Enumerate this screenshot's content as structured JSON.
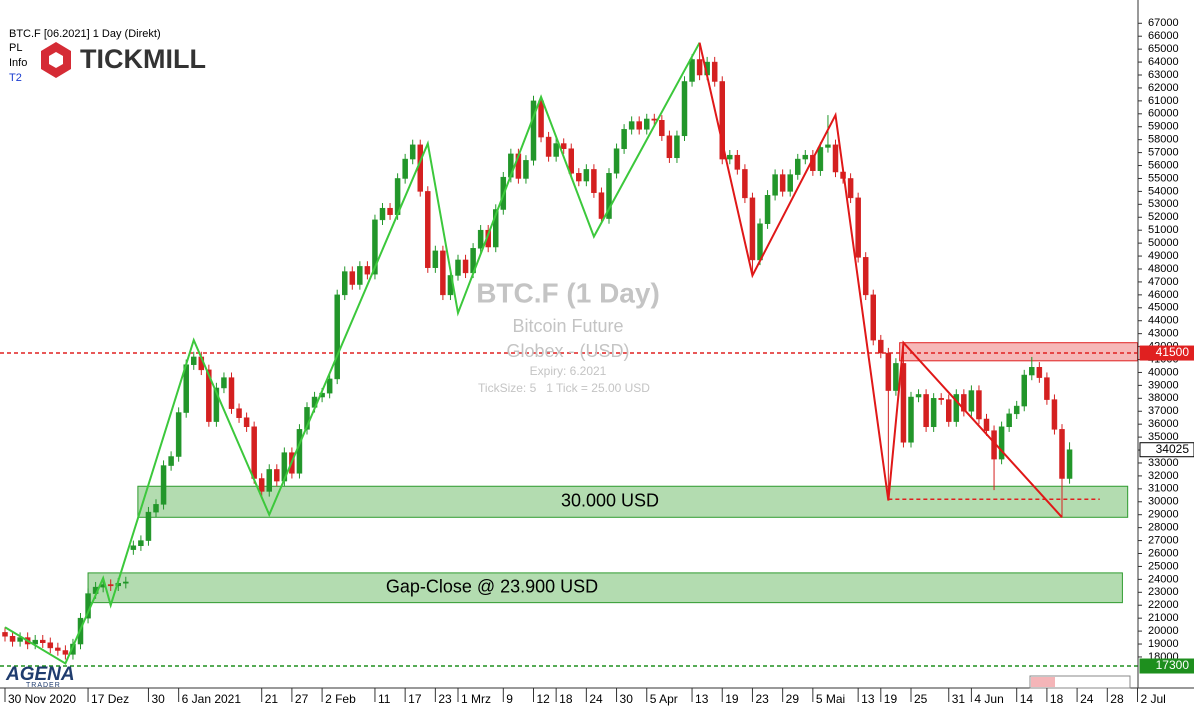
{
  "chart_data": {
    "type": "candlestick",
    "header": "BTC.F [06.2021] 1 Day (Direkt)",
    "menu": [
      "PL",
      "Info"
    ],
    "link": "T2",
    "brand": "TICKMILL",
    "logo": {
      "name": "AGENA",
      "tagline": "TRADER"
    },
    "watermark": {
      "title": "BTC.F (1 Day)",
      "subtitle": "Bitcoin Future",
      "exchange": "Globex - (USD)",
      "expiry": "Expiry: 6.2021",
      "ticksize": "TickSize: 5   1 Tick = 25.00 USD"
    },
    "categories": [
      "30 Nov 2020",
      null,
      null,
      null,
      null,
      null,
      null,
      null,
      null,
      null,
      null,
      "17 Dez",
      null,
      null,
      null,
      null,
      null,
      null,
      null,
      "30",
      null,
      null,
      null,
      "6 Jan 2021",
      null,
      null,
      null,
      null,
      null,
      null,
      null,
      null,
      null,
      null,
      "21",
      null,
      null,
      null,
      "27",
      null,
      null,
      null,
      "2 Feb",
      null,
      null,
      null,
      null,
      null,
      null,
      "11",
      null,
      null,
      null,
      "17",
      null,
      null,
      null,
      "23",
      null,
      null,
      "1 Mrz",
      null,
      null,
      null,
      null,
      null,
      "9",
      null,
      null,
      null,
      "12",
      null,
      null,
      "18",
      null,
      null,
      null,
      "24",
      null,
      null,
      null,
      "30",
      null,
      null,
      null,
      "5 Apr",
      null,
      null,
      null,
      null,
      null,
      "13",
      null,
      null,
      null,
      "19",
      null,
      null,
      null,
      "23",
      null,
      null,
      null,
      "29",
      null,
      null,
      null,
      "5 Mai",
      null,
      null,
      null,
      null,
      null,
      "13",
      null,
      null,
      "19",
      null,
      null,
      null,
      "25",
      null,
      null,
      null,
      null,
      "31",
      null,
      null,
      "4 Jun",
      null,
      null,
      null,
      null,
      null,
      "14",
      null,
      null,
      null,
      "18",
      null,
      null,
      null,
      "24",
      null,
      null,
      null,
      "28",
      null,
      null,
      null,
      "2 Jul"
    ],
    "series": {
      "open": [
        19900,
        19600,
        19200,
        19500,
        19000,
        19300,
        19100,
        18700,
        18500,
        18200,
        19000,
        21000,
        22900,
        23400,
        23600,
        23500,
        23700,
        26300,
        26600,
        27000,
        29200,
        29800,
        32800,
        33500,
        36900,
        40600,
        41200,
        40200,
        36200,
        38800,
        39600,
        37200,
        36500,
        35800,
        31800,
        30800,
        32500,
        31600,
        33800,
        32200,
        35600,
        37300,
        38100,
        38400,
        39500,
        46000,
        47800,
        46800,
        48200,
        47600,
        51800,
        52700,
        52200,
        55000,
        56500,
        57600,
        54000,
        48100,
        49400,
        46000,
        47500,
        48700,
        47700,
        49600,
        51000,
        49700,
        52600,
        55100,
        56900,
        55000,
        56400,
        61000,
        58200,
        56700,
        57700,
        57300,
        55400,
        54800,
        55700,
        53900,
        51900,
        55400,
        57300,
        58800,
        59400,
        58800,
        59600,
        59500,
        58300,
        56600,
        58300,
        62500,
        64200,
        63000,
        64000,
        62500,
        56500,
        56800,
        55700,
        53500,
        48700,
        51500,
        53700,
        55300,
        54000,
        55300,
        56500,
        56800,
        55600,
        57400,
        57600,
        55500,
        55000,
        53500,
        48900,
        46000,
        42500,
        41500,
        38600,
        40700,
        34600,
        38100,
        38300,
        35800,
        38000,
        37900,
        36200,
        38300,
        37000,
        38600,
        36400,
        35500,
        33300,
        35800,
        36800,
        37400,
        39800,
        40400,
        39600,
        37900,
        35600,
        31800,
        null,
        null,
        null,
        null,
        null,
        null,
        null,
        null,
        null
      ],
      "high": [
        20300,
        20000,
        19900,
        19900,
        19700,
        19700,
        19500,
        19100,
        18900,
        19400,
        21400,
        23300,
        23800,
        24000,
        24000,
        24100,
        24200,
        27000,
        27400,
        29600,
        30200,
        33200,
        33900,
        37300,
        41000,
        41600,
        41600,
        40600,
        39200,
        40000,
        40000,
        37600,
        36900,
        36200,
        32200,
        32900,
        32900,
        34200,
        34200,
        36000,
        37700,
        38500,
        38800,
        39900,
        46400,
        48200,
        48200,
        48600,
        48600,
        52200,
        53100,
        53100,
        55400,
        56900,
        58000,
        58000,
        54400,
        49800,
        49800,
        47900,
        49100,
        49100,
        50000,
        51400,
        51400,
        53000,
        55500,
        57300,
        57300,
        56800,
        61400,
        61400,
        58600,
        58100,
        58100,
        57700,
        55800,
        56100,
        56100,
        54300,
        55800,
        57700,
        59200,
        59800,
        59800,
        60000,
        60000,
        59900,
        58700,
        58700,
        62900,
        64600,
        65500,
        64400,
        64400,
        62900,
        57200,
        57200,
        56100,
        53900,
        51900,
        54100,
        55700,
        55700,
        55700,
        56900,
        57200,
        57200,
        57800,
        59900,
        58000,
        55900,
        55400,
        53900,
        49300,
        46400,
        42900,
        41900,
        41100,
        42300,
        38500,
        38700,
        38700,
        38400,
        38400,
        38300,
        38700,
        38700,
        39000,
        39000,
        36800,
        35900,
        36200,
        37200,
        37800,
        40200,
        41200,
        40800,
        40000,
        38300,
        36000,
        34600,
        null,
        null,
        null,
        null,
        null,
        null,
        null,
        null,
        null
      ],
      "low": [
        19200,
        18800,
        18800,
        18600,
        18600,
        18700,
        18300,
        18100,
        17800,
        17800,
        18600,
        20600,
        22500,
        23000,
        23100,
        23100,
        23300,
        25900,
        26200,
        26600,
        28800,
        29400,
        32400,
        33100,
        36500,
        40200,
        39800,
        35800,
        35800,
        38400,
        36800,
        36100,
        35400,
        31400,
        30400,
        30400,
        31200,
        31200,
        31800,
        31800,
        35200,
        36900,
        37700,
        38000,
        39100,
        45600,
        46400,
        46400,
        47200,
        47200,
        51400,
        51800,
        51800,
        54600,
        56100,
        53600,
        47700,
        47700,
        45600,
        45600,
        47100,
        47300,
        47300,
        49200,
        49300,
        49300,
        52200,
        54700,
        54600,
        54600,
        56000,
        57800,
        56300,
        56300,
        56900,
        55000,
        54400,
        54400,
        53500,
        51500,
        51500,
        55000,
        56900,
        58400,
        58400,
        58400,
        59100,
        57900,
        56200,
        56200,
        57900,
        62100,
        62600,
        62600,
        62100,
        56100,
        56100,
        55300,
        53100,
        47500,
        48300,
        51100,
        53300,
        53600,
        53600,
        54900,
        56100,
        55200,
        55200,
        57000,
        55100,
        54600,
        53100,
        48500,
        45600,
        42100,
        41100,
        30100,
        38200,
        34200,
        34200,
        37700,
        35400,
        35400,
        37500,
        35800,
        35800,
        36600,
        36600,
        36000,
        35100,
        30900,
        32900,
        35400,
        36400,
        37000,
        39400,
        39200,
        37500,
        35200,
        28800,
        31400,
        null,
        null,
        null,
        null,
        null,
        null,
        null,
        null,
        null
      ],
      "close": [
        19600,
        19200,
        19500,
        19000,
        19300,
        19100,
        18700,
        18500,
        18200,
        19000,
        21000,
        22900,
        23400,
        23600,
        23500,
        23700,
        23800,
        26600,
        27000,
        29200,
        29800,
        32800,
        33500,
        36900,
        40600,
        41200,
        40200,
        36200,
        38800,
        39600,
        37200,
        36500,
        35800,
        31800,
        30800,
        32500,
        31600,
        33800,
        32200,
        35600,
        37300,
        38100,
        38400,
        39500,
        46000,
        47800,
        46800,
        48200,
        47600,
        51800,
        52700,
        52200,
        55000,
        56500,
        57600,
        54000,
        48100,
        49400,
        46000,
        47500,
        48700,
        47700,
        49600,
        51000,
        49700,
        52600,
        55100,
        56900,
        55000,
        56400,
        61000,
        58200,
        56700,
        57700,
        57300,
        55400,
        54800,
        55700,
        53900,
        51900,
        55400,
        57300,
        58800,
        59400,
        58800,
        59600,
        59500,
        58300,
        56600,
        58300,
        62500,
        64200,
        63000,
        64000,
        62500,
        56500,
        56800,
        55700,
        53500,
        48700,
        51500,
        53700,
        55300,
        54000,
        55300,
        56500,
        56800,
        55600,
        57400,
        57600,
        55500,
        55000,
        53500,
        48900,
        46000,
        42500,
        41500,
        38600,
        40700,
        34600,
        38100,
        38300,
        35800,
        38000,
        37900,
        36200,
        38300,
        37000,
        38600,
        36400,
        35500,
        33300,
        35800,
        36800,
        37400,
        39800,
        40400,
        39600,
        37900,
        35600,
        31800,
        34025,
        null,
        null,
        null,
        null,
        null,
        null,
        null,
        null,
        null
      ]
    },
    "up_color": "#22962a",
    "down_color": "#d42020",
    "ylim": [
      15600,
      68800
    ],
    "yticks": [
      18000,
      19000,
      20000,
      21000,
      22000,
      23000,
      24000,
      25000,
      26000,
      27000,
      28000,
      29000,
      30000,
      31000,
      32000,
      33000,
      34000,
      35000,
      36000,
      37000,
      38000,
      39000,
      40000,
      41000,
      42000,
      43000,
      44000,
      45000,
      46000,
      47000,
      48000,
      49000,
      50000,
      51000,
      52000,
      53000,
      54000,
      55000,
      56000,
      57000,
      58000,
      59000,
      60000,
      61000,
      62000,
      63000,
      64000,
      65000,
      66000,
      67000
    ],
    "grid": false,
    "levels": [
      {
        "value": 41500,
        "color": "#e02020"
      },
      {
        "value": 17300,
        "color": "#1e8f1e"
      }
    ],
    "last_price": 34025,
    "zones": [
      {
        "label": "30.000 USD",
        "x": [
          17.6,
          148.7
        ],
        "y": [
          28800,
          31200
        ],
        "color": "#b3dcb0",
        "border": "#2e9b2e"
      },
      {
        "label": "Gap-Close @ 23.900 USD",
        "x": [
          11,
          148
        ],
        "y": [
          22200,
          24500
        ],
        "color": "#b3dcb0",
        "border": "#2e9b2e"
      },
      {
        "x": [
          118.5,
          150
        ],
        "y": [
          40900,
          42300
        ],
        "color": "#f6b8b8",
        "border": "#e02020"
      }
    ],
    "zigzags": [
      {
        "color": "#3cc83c",
        "points": [
          [
            0,
            20300
          ],
          [
            8,
            17500
          ],
          [
            13,
            24100
          ],
          [
            14,
            22000
          ],
          [
            25,
            42500
          ],
          [
            35,
            29000
          ],
          [
            56,
            57700
          ],
          [
            60,
            44600
          ],
          [
            71,
            61300
          ],
          [
            78,
            50500
          ],
          [
            92,
            65500
          ]
        ]
      },
      {
        "color": "#e01818",
        "points": [
          [
            92,
            65500
          ],
          [
            99,
            47500
          ],
          [
            110,
            59900
          ],
          [
            117,
            30100
          ],
          [
            119,
            42300
          ],
          [
            140,
            28800
          ]
        ]
      }
    ],
    "segments": [
      {
        "value": 30200,
        "x": [
          117,
          145
        ],
        "color": "#e02020"
      }
    ]
  }
}
